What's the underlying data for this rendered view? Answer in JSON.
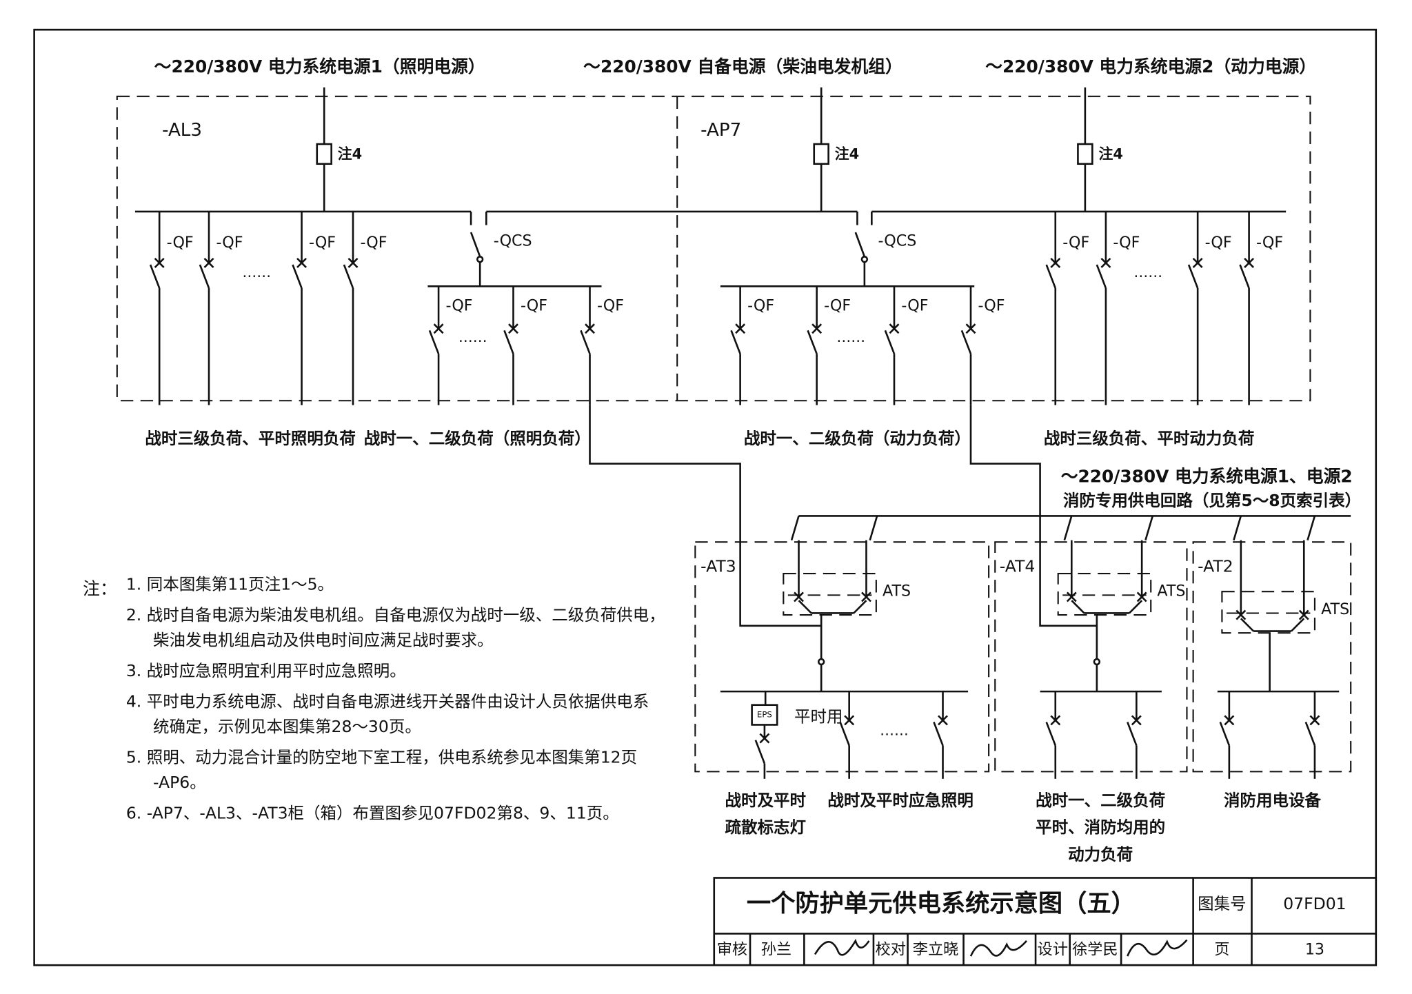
{
  "sources": [
    "～220/380V 电力系统电源1（照明电源）",
    "～220/380V 自备电源（柴油电发机组）",
    "～220/380V 电力系统电源2（动力电源）"
  ],
  "panels": [
    "-AL3",
    "-AP7",
    "-AT3",
    "-AT4",
    "-AT2"
  ],
  "note4": [
    "注4",
    "注4",
    "注4"
  ],
  "qf": [
    "-QF",
    "-QF",
    "-QF",
    "-QF",
    "-QF",
    "-QF",
    "-QF",
    "-QF",
    "-QF",
    "-QF",
    "-QF",
    "-QF",
    "-QF",
    "-QF",
    "-QF"
  ],
  "qcs": [
    "-QCS",
    "-QCS"
  ],
  "dots": [
    "……",
    "……",
    "……",
    "……",
    "……"
  ],
  "ats": [
    "ATS",
    "ATS",
    "ATS"
  ],
  "eps": "EPS",
  "normal_use": "平时用",
  "loads": [
    "战时三级负荷、平时照明负荷",
    "战时一、二级负荷（照明负荷）",
    "战时一、二级负荷（动力负荷）",
    "战时三级负荷、平时动力负荷"
  ],
  "fire_source": [
    "～220/380V 电力系统电源1、电源2",
    "消防专用供电回路（见第5～8页索引表）"
  ],
  "bottom_loads": [
    [
      "战时及平时",
      "疏散标志灯"
    ],
    [
      "战时及平时应急照明"
    ],
    [
      "战时一、二级负荷",
      "平时、消防均用的",
      "动力负荷"
    ],
    [
      "消防用电设备"
    ]
  ],
  "notes": {
    "label": "注：",
    "items": [
      [
        "1. 同本图集第11页注1～5。"
      ],
      [
        "2. 战时自备电源为柴油发电机组。自备电源仅为战时一级、二级负荷供电，",
        "柴油发电机组启动及供电时间应满足战时要求。"
      ],
      [
        "3. 战时应急照明宜利用平时应急照明。"
      ],
      [
        "4. 平时电力系统电源、战时自备电源进线开关器件由设计人员依据供电系",
        "统确定，示例见本图集第28～30页。"
      ],
      [
        "5. 照明、动力混合计量的防空地下室工程，供电系统参见本图集第12页",
        "-AP6。"
      ],
      [
        "6. -AP7、-AL3、-AT3柜（箱）布置图参见07FD02第8、9、11页。"
      ]
    ]
  },
  "title_block": {
    "title": "一个防护单元供电系统示意图（五）",
    "atlas_label": "图集号",
    "atlas_no": "07FD01",
    "review_label": "审核",
    "reviewer": "孙兰",
    "check_label": "校对",
    "checker": "李立晓",
    "design_label": "设计",
    "designer": "徐学民",
    "page_label": "页",
    "page": "13"
  }
}
